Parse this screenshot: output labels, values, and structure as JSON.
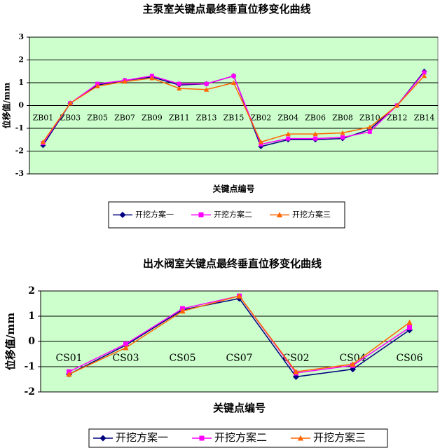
{
  "chart_data": [
    {
      "type": "line",
      "title": "主泵室关键点最终垂直位移变化曲线",
      "y_label": "位移值/mm",
      "x_label": "关键点编号",
      "categories": [
        "ZB01",
        "ZB03",
        "ZB05",
        "ZB07",
        "ZB09",
        "ZB11",
        "ZB13",
        "ZB15",
        "ZB02",
        "ZB04",
        "ZB06",
        "ZB08",
        "ZB10",
        "ZB12",
        "ZB14"
      ],
      "ylim": [
        -3,
        3
      ],
      "yticks": [
        -3,
        -2,
        -1,
        0,
        1,
        2,
        3
      ],
      "grid": true,
      "legend": "bottom",
      "series": [
        {
          "name": "开挖方案一",
          "color": "#000080",
          "marker": "diamond",
          "values": [
            -1.75,
            0.1,
            0.9,
            1.1,
            1.25,
            0.9,
            0.95,
            1.3,
            -1.8,
            -1.5,
            -1.5,
            -1.45,
            -1.05,
            0,
            1.5
          ]
        },
        {
          "name": "开挖方案二",
          "color": "#ff00ff",
          "marker": "square",
          "values": [
            -1.65,
            0.1,
            0.95,
            1.1,
            1.3,
            0.95,
            0.95,
            1.3,
            -1.7,
            -1.45,
            -1.45,
            -1.4,
            -1.15,
            0,
            1.45
          ]
        },
        {
          "name": "开挖方案三",
          "color": "#ff6600",
          "marker": "triangle",
          "values": [
            -1.6,
            0.1,
            0.85,
            1.05,
            1.2,
            0.75,
            0.7,
            1.0,
            -1.6,
            -1.25,
            -1.25,
            -1.2,
            -0.95,
            0,
            1.3
          ]
        }
      ]
    },
    {
      "type": "line",
      "title": "出水阀室关键点最终垂直位移变化曲线",
      "y_label": "位移值/mm",
      "x_label": "关键点编号",
      "categories": [
        "CS01",
        "CS03",
        "CS05",
        "CS07",
        "CS02",
        "CS04",
        "CS06"
      ],
      "ylim": [
        -2,
        2
      ],
      "yticks": [
        -2,
        -1,
        0,
        1,
        2
      ],
      "grid": true,
      "legend": "bottom",
      "series": [
        {
          "name": "开挖方案一",
          "color": "#000080",
          "marker": "diamond",
          "values": [
            -1.3,
            -0.15,
            1.25,
            1.7,
            -1.4,
            -1.1,
            0.45
          ]
        },
        {
          "name": "开挖方案二",
          "color": "#ff00ff",
          "marker": "square",
          "values": [
            -1.2,
            -0.1,
            1.3,
            1.8,
            -1.25,
            -0.95,
            0.55
          ]
        },
        {
          "name": "开挖方案三",
          "color": "#ff6600",
          "marker": "triangle",
          "values": [
            -1.3,
            -0.25,
            1.2,
            1.8,
            -1.2,
            -0.9,
            0.75
          ]
        }
      ]
    }
  ]
}
